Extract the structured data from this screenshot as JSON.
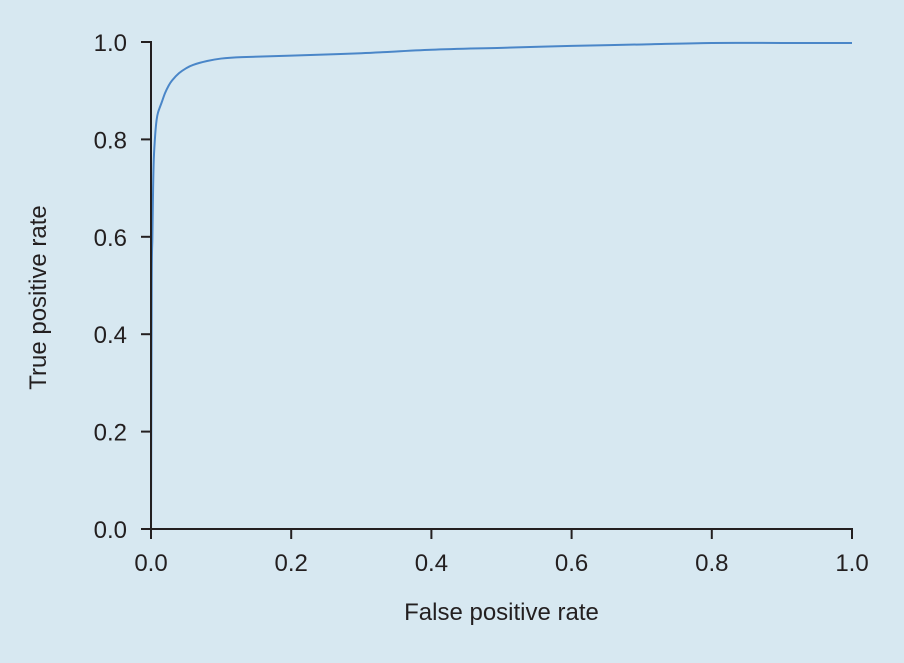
{
  "chart_data": {
    "type": "line",
    "title": "",
    "xlabel": "False positive rate",
    "ylabel": "True positive rate",
    "xlim": [
      0,
      1
    ],
    "ylim": [
      0,
      1
    ],
    "xticks": [
      "0.0",
      "0.2",
      "0.4",
      "0.6",
      "0.8",
      "1.0"
    ],
    "yticks": [
      "0.0",
      "0.2",
      "0.4",
      "0.6",
      "0.8",
      "1.0"
    ],
    "grid": false,
    "legend": "none",
    "colors": {
      "background": "#d7e8f1",
      "line": "#4a86c8",
      "axis": "#231f20"
    },
    "series": [
      {
        "x": [
          0,
          0.001,
          0.002,
          0.003,
          0.004,
          0.006,
          0.008,
          0.01,
          0.015,
          0.02,
          0.025,
          0.03,
          0.04,
          0.05,
          0.06,
          0.08,
          0.1,
          0.13,
          0.2,
          0.3,
          0.4,
          0.5,
          0.6,
          0.7,
          0.8,
          0.9,
          1.0
        ],
        "y": [
          0,
          0.5,
          0.6,
          0.7,
          0.76,
          0.81,
          0.84,
          0.855,
          0.875,
          0.895,
          0.91,
          0.921,
          0.936,
          0.946,
          0.953,
          0.961,
          0.966,
          0.969,
          0.972,
          0.977,
          0.984,
          0.988,
          0.992,
          0.995,
          0.998,
          0.998,
          0.998
        ]
      }
    ]
  }
}
